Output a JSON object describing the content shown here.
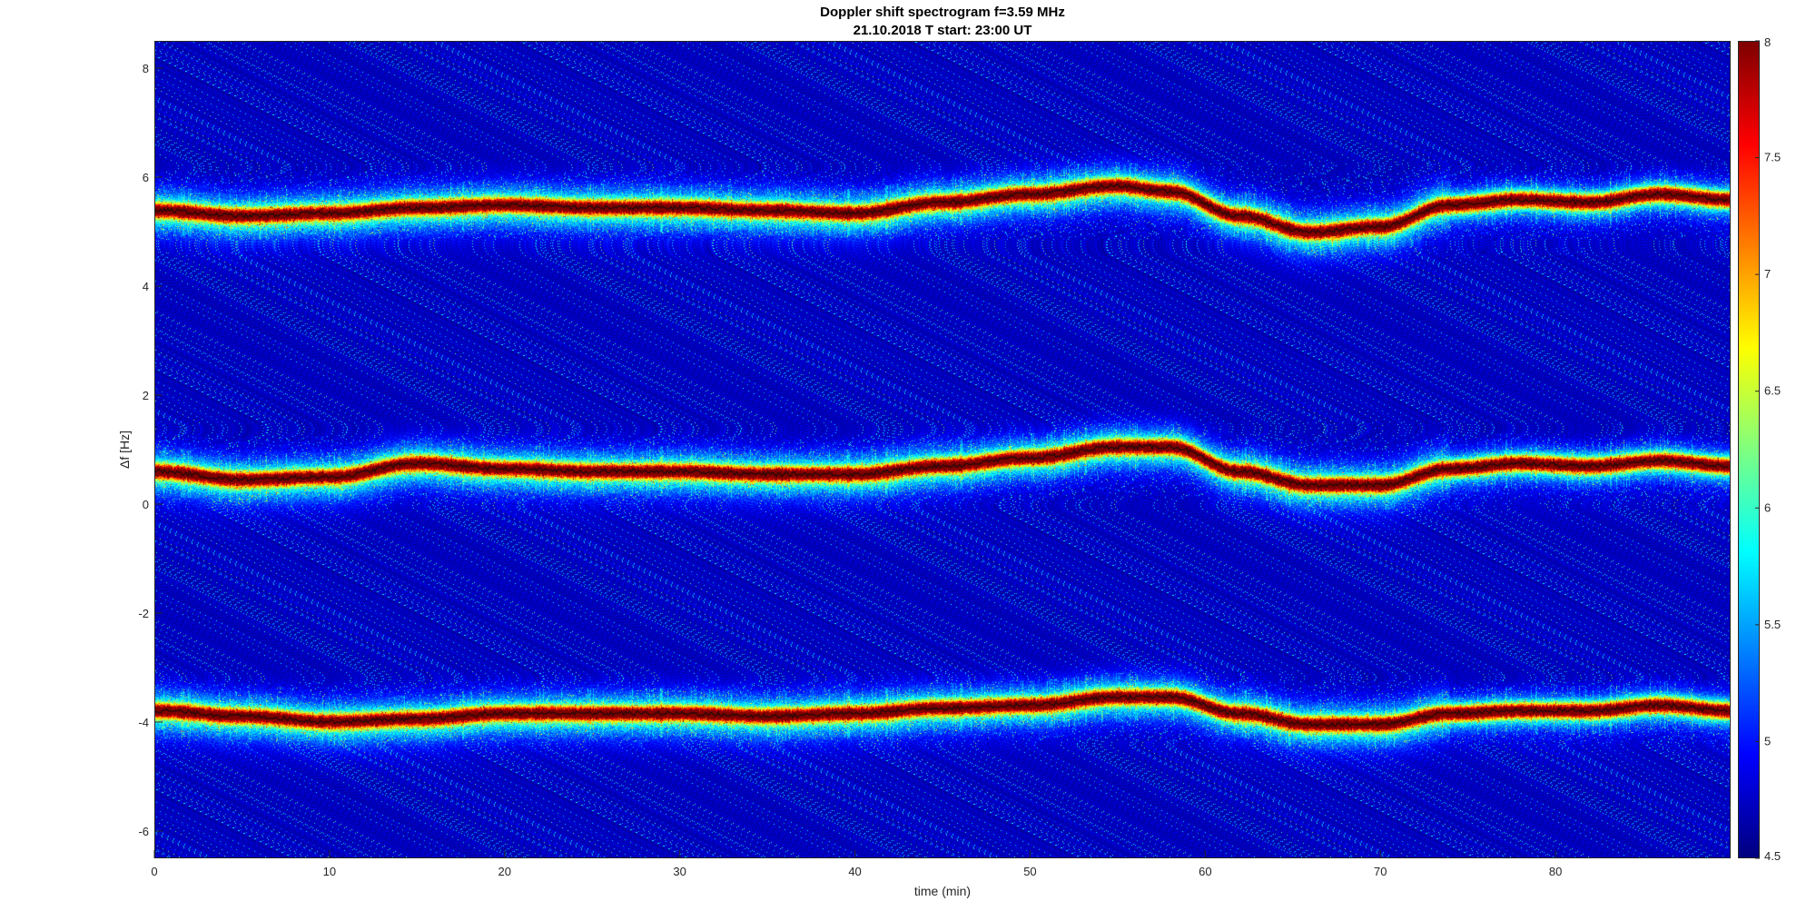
{
  "chart_data": {
    "type": "heatmap",
    "title": "Doppler shift spectrogram f=3.59 MHz",
    "subtitle": "21.10.2018    T start: 23:00 UT",
    "xlabel": "time (min)",
    "ylabel": "Δf [Hz]",
    "xlim": [
      0,
      90
    ],
    "ylim": [
      -6.5,
      8.5
    ],
    "xticks": [
      0,
      10,
      20,
      30,
      40,
      50,
      60,
      70,
      80
    ],
    "yticks": [
      -6,
      -4,
      -2,
      0,
      2,
      4,
      6,
      8
    ],
    "colormap": "jet",
    "clim": [
      4.5,
      8
    ],
    "colorbar_ticks": [
      4.5,
      5,
      5.5,
      6,
      6.5,
      7,
      7.5,
      8
    ],
    "traces": [
      {
        "x": [
          0,
          5,
          10,
          15,
          20,
          25,
          30,
          35,
          40,
          45,
          50,
          55,
          58,
          62,
          66,
          70,
          74,
          78,
          82,
          86,
          90
        ],
        "y": [
          5.4,
          5.3,
          5.35,
          5.45,
          5.5,
          5.45,
          5.45,
          5.4,
          5.35,
          5.55,
          5.7,
          5.85,
          5.75,
          5.3,
          5.0,
          5.1,
          5.5,
          5.6,
          5.55,
          5.7,
          5.6
        ]
      },
      {
        "x": [
          0,
          5,
          10,
          15,
          20,
          25,
          30,
          35,
          40,
          45,
          50,
          55,
          58,
          62,
          66,
          70,
          74,
          78,
          82,
          86,
          90
        ],
        "y": [
          0.6,
          0.45,
          0.5,
          0.75,
          0.65,
          0.6,
          0.6,
          0.55,
          0.55,
          0.7,
          0.85,
          1.05,
          1.05,
          0.6,
          0.35,
          0.35,
          0.65,
          0.75,
          0.7,
          0.8,
          0.7
        ]
      },
      {
        "x": [
          0,
          5,
          10,
          15,
          20,
          25,
          30,
          35,
          40,
          45,
          50,
          55,
          58,
          62,
          66,
          70,
          74,
          78,
          82,
          86,
          90
        ],
        "y": [
          -3.8,
          -3.9,
          -4.0,
          -3.95,
          -3.85,
          -3.85,
          -3.85,
          -3.9,
          -3.85,
          -3.75,
          -3.7,
          -3.55,
          -3.55,
          -3.85,
          -4.05,
          -4.05,
          -3.85,
          -3.8,
          -3.8,
          -3.7,
          -3.8
        ]
      }
    ]
  }
}
